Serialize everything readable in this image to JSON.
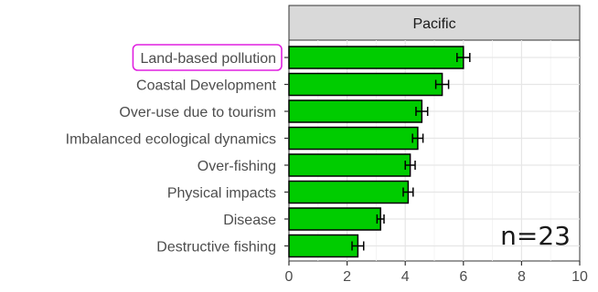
{
  "chart_data": {
    "type": "bar",
    "orientation": "horizontal",
    "facet": "Pacific",
    "categories": [
      "Land-based pollution",
      "Coastal Development",
      "Over-use due to tourism",
      "Imbalanced ecological dynamics",
      "Over-fishing",
      "Physical impacts",
      "Disease",
      "Destructive fishing"
    ],
    "values": [
      6.0,
      5.27,
      4.57,
      4.43,
      4.17,
      4.1,
      3.15,
      2.37
    ],
    "errors": [
      0.22,
      0.22,
      0.2,
      0.18,
      0.17,
      0.17,
      0.12,
      0.2
    ],
    "highlighted_category": "Land-based pollution",
    "annotation": "n=23",
    "xlim": [
      0,
      10
    ],
    "xticks": [
      0,
      2,
      4,
      6,
      8,
      10
    ],
    "grid": true,
    "bar_color": "#00cc00",
    "highlight_color": "#e020e0"
  }
}
